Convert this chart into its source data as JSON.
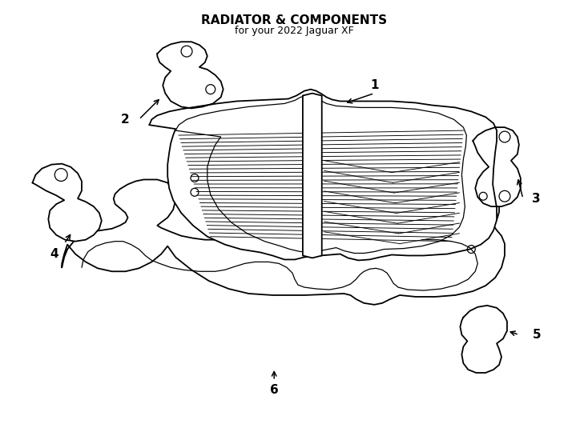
{
  "title": "RADIATOR & COMPONENTS",
  "subtitle": "for your 2022 Jaguar XF",
  "background_color": "#ffffff",
  "line_color": "#000000",
  "line_width": 1.3,
  "fig_width": 7.34,
  "fig_height": 5.4
}
